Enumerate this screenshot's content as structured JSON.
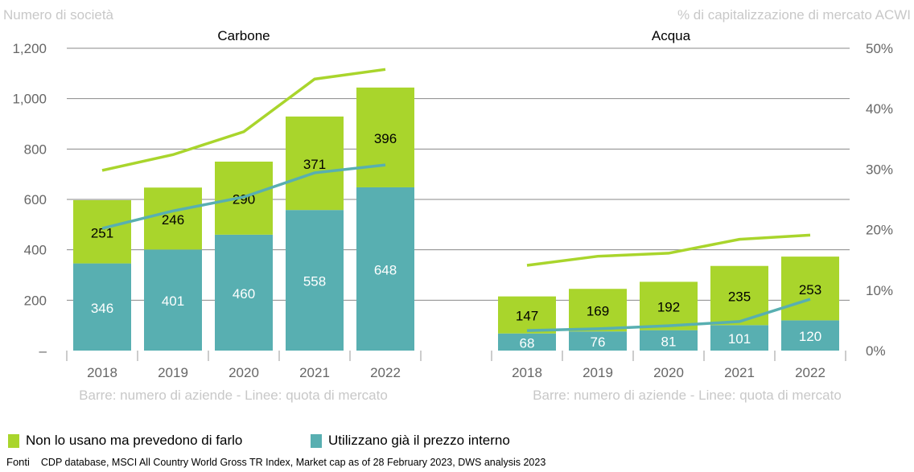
{
  "chart_data": [
    {
      "type": "bar",
      "title": "Carbone",
      "categories": [
        "2018",
        "2019",
        "2020",
        "2021",
        "2022"
      ],
      "stacked": true,
      "series": [
        {
          "name": "Utilizzano già il prezzo interno",
          "values": [
            346,
            401,
            460,
            558,
            648
          ],
          "color": "#58AFB1"
        },
        {
          "name": "Non lo usano ma prevedono di farlo",
          "values": [
            251,
            246,
            290,
            371,
            396
          ],
          "color": "#A9D52C"
        }
      ],
      "lines": [
        {
          "color": "#A9D52C",
          "axis": "right",
          "values": [
            29.8,
            32.4,
            36.2,
            44.9,
            46.5
          ]
        },
        {
          "color": "#58AFB1",
          "axis": "right",
          "values": [
            20.2,
            23.1,
            25.4,
            29.4,
            30.7
          ]
        }
      ],
      "xlabel": "Barre: numero di aziende - Linee: quota di mercato"
    },
    {
      "type": "bar",
      "title": "Acqua",
      "categories": [
        "2018",
        "2019",
        "2020",
        "2021",
        "2022"
      ],
      "stacked": true,
      "series": [
        {
          "name": "Utilizzano già il prezzo interno",
          "values": [
            68,
            76,
            81,
            101,
            120
          ],
          "color": "#58AFB1"
        },
        {
          "name": "Non lo usano ma prevedono di farlo",
          "values": [
            147,
            169,
            192,
            235,
            253
          ],
          "color": "#A9D52C"
        }
      ],
      "lines": [
        {
          "color": "#A9D52C",
          "axis": "right",
          "values": [
            14.1,
            15.6,
            16.1,
            18.4,
            19.1
          ]
        },
        {
          "color": "#58AFB1",
          "axis": "right",
          "values": [
            3.3,
            3.6,
            4.1,
            4.8,
            8.5
          ]
        }
      ],
      "xlabel": "Barre: numero di aziende - Linee: quota di mercato"
    }
  ],
  "axes": {
    "left_label": "Numero di società",
    "right_label": "% di capitalizzazione di mercato ACWI",
    "left_ylim": [
      0,
      1200
    ],
    "left_ticks": [
      "–",
      "200",
      "400",
      "600",
      "800",
      "1,000",
      "1,200"
    ],
    "right_ylim": [
      0,
      50
    ],
    "right_ticks": [
      "0%",
      "10%",
      "20%",
      "30%",
      "40%",
      "50%"
    ],
    "grid": true
  },
  "legend": [
    {
      "label": "Non lo usano ma prevedono di farlo",
      "color": "#A9D52C"
    },
    {
      "label": "Utilizzano già il prezzo interno",
      "color": "#58AFB1"
    }
  ],
  "source": {
    "label": "Fonti",
    "text": "CDP database, MSCI All Country World Gross TR Index, Market cap as of 28 February 2023, DWS analysis 2023"
  }
}
